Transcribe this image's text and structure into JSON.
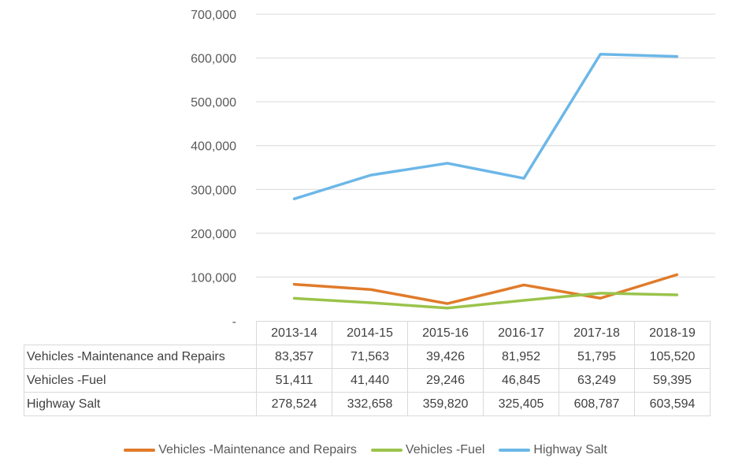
{
  "chart_data": {
    "type": "line",
    "categories": [
      "2013-14",
      "2014-15",
      "2015-16",
      "2016-17",
      "2017-18",
      "2018-19"
    ],
    "series": [
      {
        "name": "Vehicles -Maintenance and Repairs",
        "color": "#e07b2a",
        "values": [
          83357,
          71563,
          39426,
          81952,
          51795,
          105520
        ],
        "labels": [
          "83,357",
          "71,563",
          "39,426",
          "81,952",
          "51,795",
          "105,520"
        ]
      },
      {
        "name": "Vehicles -Fuel",
        "color": "#9bc34b",
        "values": [
          51411,
          41440,
          29246,
          46845,
          63249,
          59395
        ],
        "labels": [
          "51,411",
          "41,440",
          "29,246",
          "46,845",
          "63,249",
          "59,395"
        ]
      },
      {
        "name": "Highway Salt",
        "color": "#6cb7e8",
        "values": [
          278524,
          332658,
          359820,
          325405,
          608787,
          603594
        ],
        "labels": [
          "278,524",
          "332,658",
          "359,820",
          "325,405",
          "608,787",
          "603,594"
        ]
      }
    ],
    "ylim": [
      0,
      700000
    ],
    "yticks": [
      0,
      100000,
      200000,
      300000,
      400000,
      500000,
      600000,
      700000
    ],
    "ytick_labels": [
      "-",
      "100,000",
      "200,000",
      "300,000",
      "400,000",
      "500,000",
      "600,000",
      "700,000"
    ],
    "grid": true,
    "legend": "bottom",
    "data_table": true
  }
}
